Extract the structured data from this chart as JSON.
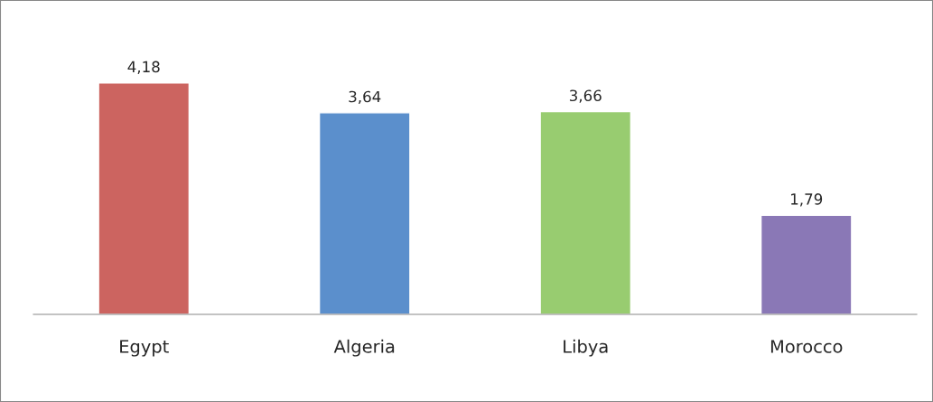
{
  "chart_data": {
    "type": "bar",
    "relative": false,
    "categories": [
      "Egypt",
      "Algeria",
      "Libya",
      "Morocco"
    ],
    "values": [
      4.18,
      3.64,
      3.66,
      1.79
    ],
    "colors": [
      "#cc6460",
      "#5b8fcc",
      "#98cc70",
      "#8a78b6"
    ],
    "value_labels": [
      "4,18",
      "3,64",
      "3,66",
      "1,79"
    ],
    "grid": false,
    "legend": false
  }
}
